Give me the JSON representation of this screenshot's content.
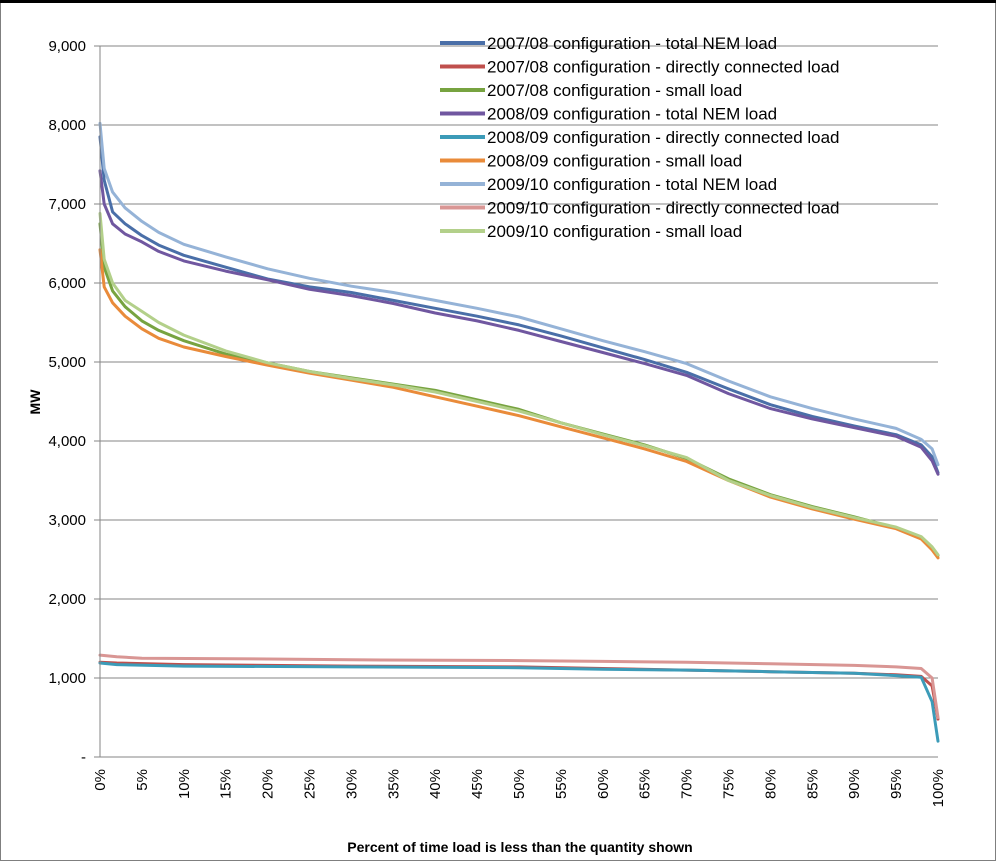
{
  "chart_data": {
    "type": "line",
    "title": "",
    "xlabel": "Percent of time load is less than the quantity shown",
    "ylabel": "MW",
    "ylim": [
      0,
      9000
    ],
    "xlim": [
      0,
      100
    ],
    "grid": "horizontal",
    "legend_position": "top-right",
    "y_ticks": [
      {
        "value": 0,
        "label": "-"
      },
      {
        "value": 1000,
        "label": "1,000"
      },
      {
        "value": 2000,
        "label": "2,000"
      },
      {
        "value": 3000,
        "label": "3,000"
      },
      {
        "value": 4000,
        "label": "4,000"
      },
      {
        "value": 5000,
        "label": "5,000"
      },
      {
        "value": 6000,
        "label": "6,000"
      },
      {
        "value": 7000,
        "label": "7,000"
      },
      {
        "value": 8000,
        "label": "8,000"
      },
      {
        "value": 9000,
        "label": "9,000"
      }
    ],
    "x_ticks": [
      {
        "value": 0,
        "label": "0%"
      },
      {
        "value": 5,
        "label": "5%"
      },
      {
        "value": 10,
        "label": "10%"
      },
      {
        "value": 15,
        "label": "15%"
      },
      {
        "value": 20,
        "label": "20%"
      },
      {
        "value": 25,
        "label": "25%"
      },
      {
        "value": 30,
        "label": "30%"
      },
      {
        "value": 35,
        "label": "35%"
      },
      {
        "value": 40,
        "label": "40%"
      },
      {
        "value": 45,
        "label": "45%"
      },
      {
        "value": 50,
        "label": "50%"
      },
      {
        "value": 55,
        "label": "55%"
      },
      {
        "value": 60,
        "label": "60%"
      },
      {
        "value": 65,
        "label": "65%"
      },
      {
        "value": 70,
        "label": "70%"
      },
      {
        "value": 75,
        "label": "75%"
      },
      {
        "value": 80,
        "label": "80%"
      },
      {
        "value": 85,
        "label": "85%"
      },
      {
        "value": 90,
        "label": "90%"
      },
      {
        "value": 95,
        "label": "95%"
      },
      {
        "value": 100,
        "label": "100%"
      }
    ],
    "series": [
      {
        "name": "2007/08 configuration - total NEM load",
        "color": "#4a6fa8",
        "points": [
          [
            0,
            7850
          ],
          [
            0.5,
            7300
          ],
          [
            1.5,
            6900
          ],
          [
            3,
            6750
          ],
          [
            5,
            6600
          ],
          [
            7,
            6480
          ],
          [
            10,
            6350
          ],
          [
            15,
            6200
          ],
          [
            20,
            6050
          ],
          [
            25,
            5950
          ],
          [
            30,
            5880
          ],
          [
            35,
            5780
          ],
          [
            40,
            5680
          ],
          [
            45,
            5580
          ],
          [
            50,
            5470
          ],
          [
            55,
            5330
          ],
          [
            60,
            5180
          ],
          [
            65,
            5030
          ],
          [
            70,
            4870
          ],
          [
            75,
            4660
          ],
          [
            80,
            4460
          ],
          [
            85,
            4310
          ],
          [
            90,
            4190
          ],
          [
            95,
            4080
          ],
          [
            98,
            3950
          ],
          [
            99.3,
            3800
          ],
          [
            100,
            3600
          ]
        ]
      },
      {
        "name": "2007/08 configuration - directly connected load",
        "color": "#c0504d",
        "points": [
          [
            0,
            1200
          ],
          [
            2,
            1190
          ],
          [
            10,
            1170
          ],
          [
            30,
            1150
          ],
          [
            50,
            1140
          ],
          [
            60,
            1120
          ],
          [
            70,
            1100
          ],
          [
            80,
            1080
          ],
          [
            90,
            1060
          ],
          [
            95,
            1040
          ],
          [
            98,
            1020
          ],
          [
            99.3,
            900
          ],
          [
            100,
            480
          ]
        ]
      },
      {
        "name": "2007/08 configuration - small load",
        "color": "#77a340",
        "points": [
          [
            0,
            6750
          ],
          [
            0.5,
            6200
          ],
          [
            1.5,
            5900
          ],
          [
            3,
            5700
          ],
          [
            5,
            5520
          ],
          [
            7,
            5400
          ],
          [
            10,
            5270
          ],
          [
            15,
            5100
          ],
          [
            20,
            4990
          ],
          [
            25,
            4880
          ],
          [
            30,
            4800
          ],
          [
            35,
            4720
          ],
          [
            40,
            4640
          ],
          [
            45,
            4520
          ],
          [
            50,
            4400
          ],
          [
            55,
            4230
          ],
          [
            60,
            4090
          ],
          [
            65,
            3950
          ],
          [
            70,
            3780
          ],
          [
            75,
            3520
          ],
          [
            80,
            3320
          ],
          [
            85,
            3170
          ],
          [
            90,
            3040
          ],
          [
            95,
            2900
          ],
          [
            98,
            2780
          ],
          [
            99.3,
            2650
          ],
          [
            100,
            2550
          ]
        ]
      },
      {
        "name": "2008/09 configuration - total NEM load",
        "color": "#7057a0",
        "points": [
          [
            0,
            7420
          ],
          [
            0.5,
            7000
          ],
          [
            1.5,
            6750
          ],
          [
            3,
            6620
          ],
          [
            5,
            6520
          ],
          [
            7,
            6400
          ],
          [
            10,
            6280
          ],
          [
            15,
            6150
          ],
          [
            20,
            6040
          ],
          [
            25,
            5920
          ],
          [
            30,
            5840
          ],
          [
            35,
            5740
          ],
          [
            40,
            5620
          ],
          [
            45,
            5520
          ],
          [
            50,
            5400
          ],
          [
            55,
            5260
          ],
          [
            60,
            5120
          ],
          [
            65,
            4980
          ],
          [
            70,
            4830
          ],
          [
            75,
            4600
          ],
          [
            80,
            4410
          ],
          [
            85,
            4280
          ],
          [
            90,
            4170
          ],
          [
            95,
            4060
          ],
          [
            98,
            3920
          ],
          [
            99.3,
            3750
          ],
          [
            100,
            3580
          ]
        ]
      },
      {
        "name": "2008/09 configuration - directly connected load",
        "color": "#3c9bb8",
        "points": [
          [
            0,
            1190
          ],
          [
            2,
            1170
          ],
          [
            10,
            1150
          ],
          [
            30,
            1140
          ],
          [
            50,
            1130
          ],
          [
            60,
            1110
          ],
          [
            70,
            1100
          ],
          [
            80,
            1080
          ],
          [
            90,
            1060
          ],
          [
            95,
            1030
          ],
          [
            98,
            1010
          ],
          [
            99.3,
            700
          ],
          [
            100,
            200
          ]
        ]
      },
      {
        "name": "2008/09 configuration - small load",
        "color": "#e98b3a",
        "points": [
          [
            0,
            6420
          ],
          [
            0.5,
            5950
          ],
          [
            1.5,
            5750
          ],
          [
            3,
            5580
          ],
          [
            5,
            5420
          ],
          [
            7,
            5300
          ],
          [
            10,
            5190
          ],
          [
            15,
            5070
          ],
          [
            20,
            4960
          ],
          [
            25,
            4860
          ],
          [
            30,
            4770
          ],
          [
            35,
            4680
          ],
          [
            40,
            4560
          ],
          [
            45,
            4440
          ],
          [
            50,
            4320
          ],
          [
            55,
            4180
          ],
          [
            60,
            4040
          ],
          [
            65,
            3900
          ],
          [
            70,
            3740
          ],
          [
            75,
            3500
          ],
          [
            80,
            3290
          ],
          [
            85,
            3140
          ],
          [
            90,
            3010
          ],
          [
            95,
            2890
          ],
          [
            98,
            2760
          ],
          [
            99.3,
            2620
          ],
          [
            100,
            2520
          ]
        ]
      },
      {
        "name": "2009/10 configuration - total NEM load",
        "color": "#95b3d7",
        "points": [
          [
            0,
            8020
          ],
          [
            0.5,
            7450
          ],
          [
            1.5,
            7150
          ],
          [
            3,
            6950
          ],
          [
            5,
            6780
          ],
          [
            7,
            6640
          ],
          [
            10,
            6490
          ],
          [
            15,
            6330
          ],
          [
            20,
            6180
          ],
          [
            25,
            6060
          ],
          [
            30,
            5960
          ],
          [
            35,
            5880
          ],
          [
            40,
            5780
          ],
          [
            45,
            5680
          ],
          [
            50,
            5570
          ],
          [
            55,
            5420
          ],
          [
            60,
            5270
          ],
          [
            65,
            5130
          ],
          [
            70,
            4980
          ],
          [
            75,
            4760
          ],
          [
            80,
            4560
          ],
          [
            85,
            4410
          ],
          [
            90,
            4280
          ],
          [
            95,
            4160
          ],
          [
            98,
            4020
          ],
          [
            99.3,
            3900
          ],
          [
            100,
            3700
          ]
        ]
      },
      {
        "name": "2009/10 configuration - directly connected load",
        "color": "#d99694",
        "points": [
          [
            0,
            1290
          ],
          [
            2,
            1270
          ],
          [
            5,
            1250
          ],
          [
            20,
            1240
          ],
          [
            30,
            1230
          ],
          [
            50,
            1220
          ],
          [
            60,
            1210
          ],
          [
            70,
            1200
          ],
          [
            80,
            1180
          ],
          [
            90,
            1160
          ],
          [
            95,
            1140
          ],
          [
            98,
            1120
          ],
          [
            99.3,
            1000
          ],
          [
            100,
            500
          ]
        ]
      },
      {
        "name": "2009/10 configuration - small load",
        "color": "#b3d08a",
        "points": [
          [
            0,
            6880
          ],
          [
            0.5,
            6300
          ],
          [
            1.5,
            6000
          ],
          [
            3,
            5780
          ],
          [
            5,
            5640
          ],
          [
            7,
            5500
          ],
          [
            10,
            5340
          ],
          [
            15,
            5140
          ],
          [
            20,
            4990
          ],
          [
            25,
            4880
          ],
          [
            30,
            4790
          ],
          [
            35,
            4710
          ],
          [
            40,
            4620
          ],
          [
            45,
            4500
          ],
          [
            50,
            4380
          ],
          [
            55,
            4230
          ],
          [
            60,
            4080
          ],
          [
            65,
            3940
          ],
          [
            70,
            3790
          ],
          [
            75,
            3500
          ],
          [
            80,
            3310
          ],
          [
            85,
            3160
          ],
          [
            90,
            3030
          ],
          [
            95,
            2910
          ],
          [
            98,
            2790
          ],
          [
            99.3,
            2660
          ],
          [
            100,
            2560
          ]
        ]
      }
    ]
  }
}
